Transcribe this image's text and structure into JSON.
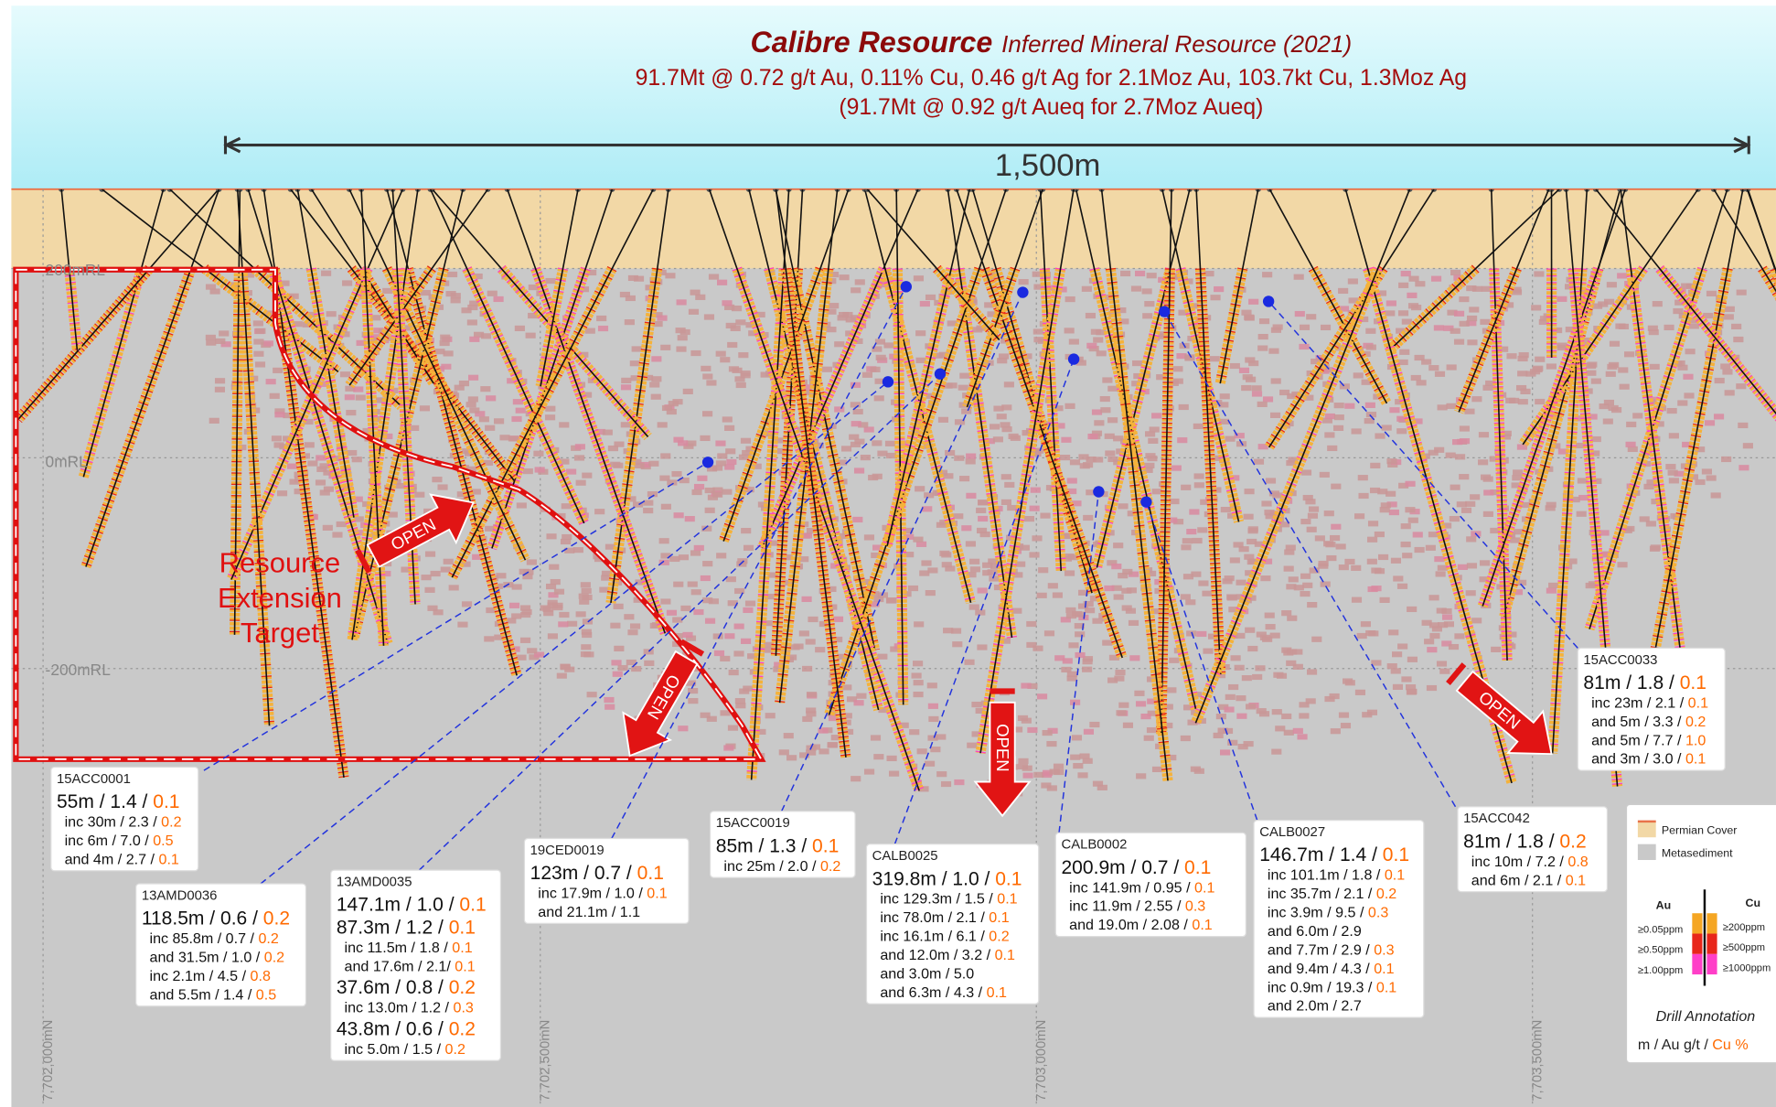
{
  "header": {
    "title": "Calibre Resource",
    "subtitle": "Inferred Mineral Resource (2021)",
    "line2": "91.7Mt @ 0.72 g/t Au, 0.11% Cu, 0.46 g/t Ag for 2.1Moz Au, 103.7kt Cu, 1.3Moz Ag",
    "line3": "(91.7Mt @ 0.92 g/t Aueq for 2.7Moz Aueq)"
  },
  "scale_bar": "1,500m",
  "rl_labels": [
    "200mRL",
    "0mRL",
    "-200mRL"
  ],
  "northings": [
    "7,702,000mN",
    "7,702,500mN",
    "7,703,000mN",
    "7,703,500mN"
  ],
  "target_label": [
    "Resource",
    "Extension",
    "Target"
  ],
  "open_arrows": [
    "OPEN",
    "OPEN",
    "OPEN",
    "OPEN"
  ],
  "intercepts": [
    {
      "id": "15ACC0001",
      "lines": [
        {
          "text": "55m / 1.4 / ",
          "cu": "0.1",
          "big": true
        },
        {
          "text": "inc 30m / 2.3 / ",
          "cu": "0.2"
        },
        {
          "text": "inc 6m / 7.0 / ",
          "cu": "0.5"
        },
        {
          "text": "and 4m / 2.7 / ",
          "cu": "0.1"
        }
      ]
    },
    {
      "id": "13AMD0036",
      "lines": [
        {
          "text": "118.5m / 0.6 / ",
          "cu": "0.2",
          "big": true
        },
        {
          "text": "inc 85.8m / 0.7 / ",
          "cu": "0.2"
        },
        {
          "text": "and 31.5m / 1.0 / ",
          "cu": "0.2"
        },
        {
          "text": "inc 2.1m / 4.5 / ",
          "cu": "0.8"
        },
        {
          "text": "and 5.5m / 1.4 / ",
          "cu": "0.5"
        }
      ]
    },
    {
      "id": "13AMD0035",
      "lines": [
        {
          "text": "147.1m / 1.0 / ",
          "cu": "0.1",
          "big": true
        },
        {
          "text": "87.3m / 1.2 / ",
          "cu": "0.1",
          "big": true
        },
        {
          "text": "inc 11.5m / 1.8 / ",
          "cu": "0.1"
        },
        {
          "text": "and 17.6m / 2.1/ ",
          "cu": "0.1"
        },
        {
          "text": "37.6m / 0.8 / ",
          "cu": "0.2",
          "big": true
        },
        {
          "text": "inc 13.0m / 1.2 / ",
          "cu": "0.3"
        },
        {
          "text": "43.8m / 0.6 / ",
          "cu": "0.2",
          "big": true
        },
        {
          "text": "inc 5.0m / 1.5 / ",
          "cu": "0.2"
        }
      ]
    },
    {
      "id": "19CED0019",
      "lines": [
        {
          "text": "123m / 0.7 / ",
          "cu": "0.1",
          "big": true
        },
        {
          "text": "inc 17.9m / 1.0 / ",
          "cu": "0.1"
        },
        {
          "text": "and 21.1m / 1.1"
        }
      ]
    },
    {
      "id": "15ACC0019",
      "lines": [
        {
          "text": "85m / 1.3 / ",
          "cu": "0.1",
          "big": true
        },
        {
          "text": "inc 25m / 2.0 / ",
          "cu": "0.2"
        }
      ]
    },
    {
      "id": "CALB0025",
      "lines": [
        {
          "text": "319.8m / 1.0 / ",
          "cu": "0.1",
          "big": true
        },
        {
          "text": "inc 129.3m / 1.5 / ",
          "cu": "0.1"
        },
        {
          "text": "inc 78.0m / 2.1 / ",
          "cu": "0.1"
        },
        {
          "text": "inc 16.1m / 6.1 / ",
          "cu": "0.2"
        },
        {
          "text": "and 12.0m / 3.2 / ",
          "cu": "0.1"
        },
        {
          "text": "and 3.0m / 5.0"
        },
        {
          "text": "and 6.3m / 4.3 / ",
          "cu": "0.1"
        }
      ]
    },
    {
      "id": "CALB0002",
      "lines": [
        {
          "text": "200.9m / 0.7 / ",
          "cu": "0.1",
          "big": true
        },
        {
          "text": "inc 141.9m / 0.95 / ",
          "cu": "0.1"
        },
        {
          "text": "inc 11.9m / 2.55 / ",
          "cu": "0.3"
        },
        {
          "text": "and 19.0m / 2.08 / ",
          "cu": "0.1"
        }
      ]
    },
    {
      "id": "CALB0027",
      "lines": [
        {
          "text": "146.7m / 1.4 / ",
          "cu": "0.1",
          "big": true
        },
        {
          "text": "inc 101.1m / 1.8 / ",
          "cu": "0.1"
        },
        {
          "text": "inc 35.7m / 2.1 / ",
          "cu": "0.2"
        },
        {
          "text": "inc 3.9m / 9.5 / ",
          "cu": "0.3"
        },
        {
          "text": "and 6.0m / 2.9"
        },
        {
          "text": "and 7.7m / 2.9 / ",
          "cu": "0.3"
        },
        {
          "text": "and 9.4m / 4.3 / ",
          "cu": "0.1"
        },
        {
          "text": "inc 0.9m / 19.3 / ",
          "cu": "0.1"
        },
        {
          "text": "and 2.0m / 2.7"
        }
      ]
    },
    {
      "id": "15ACC042",
      "lines": [
        {
          "text": "81m / 1.8 / ",
          "cu": "0.2",
          "big": true
        },
        {
          "text": "inc 10m / 7.2 / ",
          "cu": "0.8"
        },
        {
          "text": "and 6m / 2.1 / ",
          "cu": "0.1"
        }
      ]
    },
    {
      "id": "15ACC0033",
      "lines": [
        {
          "text": "81m / 1.8 / ",
          "cu": "0.1",
          "big": true
        },
        {
          "text": "inc 23m / 2.1 / ",
          "cu": "0.1"
        },
        {
          "text": "and 5m / 3.3 / ",
          "cu": "0.2"
        },
        {
          "text": "and 5m / 7.7 / ",
          "cu": "1.0"
        },
        {
          "text": "and 3m / 3.0 / ",
          "cu": "0.1"
        }
      ]
    }
  ],
  "legend": {
    "units": [
      "Permian Cover",
      "Metasediment"
    ],
    "au_title": "Au",
    "cu_title": "Cu",
    "au_levels": [
      "≥0.05ppm",
      "≥0.50ppm",
      "≥1.00ppm"
    ],
    "cu_levels": [
      "≥200ppm",
      "≥500ppm",
      "≥1000ppm"
    ],
    "annotation_title": "Drill Annotation",
    "annotation_key": "m  /  Au g/t / ",
    "annotation_cu": "Cu %"
  }
}
